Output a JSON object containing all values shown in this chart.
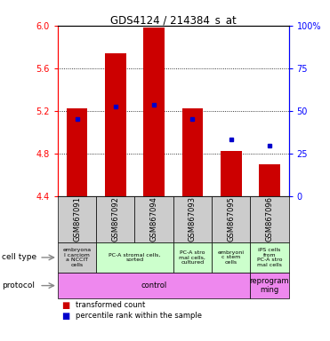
{
  "title": "GDS4124 / 214384_s_at",
  "samples": [
    "GSM867091",
    "GSM867092",
    "GSM867094",
    "GSM867093",
    "GSM867095",
    "GSM867096"
  ],
  "bar_bottoms": [
    4.4,
    4.4,
    4.4,
    4.4,
    4.4,
    4.4
  ],
  "bar_tops": [
    5.22,
    5.74,
    5.98,
    5.22,
    4.82,
    4.7
  ],
  "percentile_values": [
    5.12,
    5.24,
    5.26,
    5.12,
    4.93,
    4.87
  ],
  "ylim": [
    4.4,
    6.0
  ],
  "yticks_left": [
    4.4,
    4.8,
    5.2,
    5.6,
    6.0
  ],
  "yticks_right": [
    0,
    25,
    50,
    75,
    100
  ],
  "bar_color": "#cc0000",
  "percentile_color": "#0000cc",
  "bar_width": 0.55,
  "cell_types": [
    {
      "text": "embryona\nl carciom\na NCCIT\ncells",
      "span": [
        0,
        1
      ],
      "color": "#cccccc"
    },
    {
      "text": "PC-A stromal cells,\nsorted",
      "span": [
        1,
        3
      ],
      "color": "#ccffcc"
    },
    {
      "text": "PC-A stro\nmal cells,\ncultured",
      "span": [
        3,
        4
      ],
      "color": "#ccffcc"
    },
    {
      "text": "embryoni\nc stem\ncells",
      "span": [
        4,
        5
      ],
      "color": "#ccffcc"
    },
    {
      "text": "iPS cells\nfrom\nPC-A stro\nmal cells",
      "span": [
        5,
        6
      ],
      "color": "#ccffcc"
    }
  ],
  "protocols": [
    {
      "text": "control",
      "span": [
        0,
        5
      ],
      "color": "#ee88ee"
    },
    {
      "text": "reprogram\nming",
      "span": [
        5,
        6
      ],
      "color": "#ee88ee"
    }
  ],
  "legend_items": [
    {
      "color": "#cc0000",
      "label": "transformed count"
    },
    {
      "color": "#0000cc",
      "label": "percentile rank within the sample"
    }
  ]
}
